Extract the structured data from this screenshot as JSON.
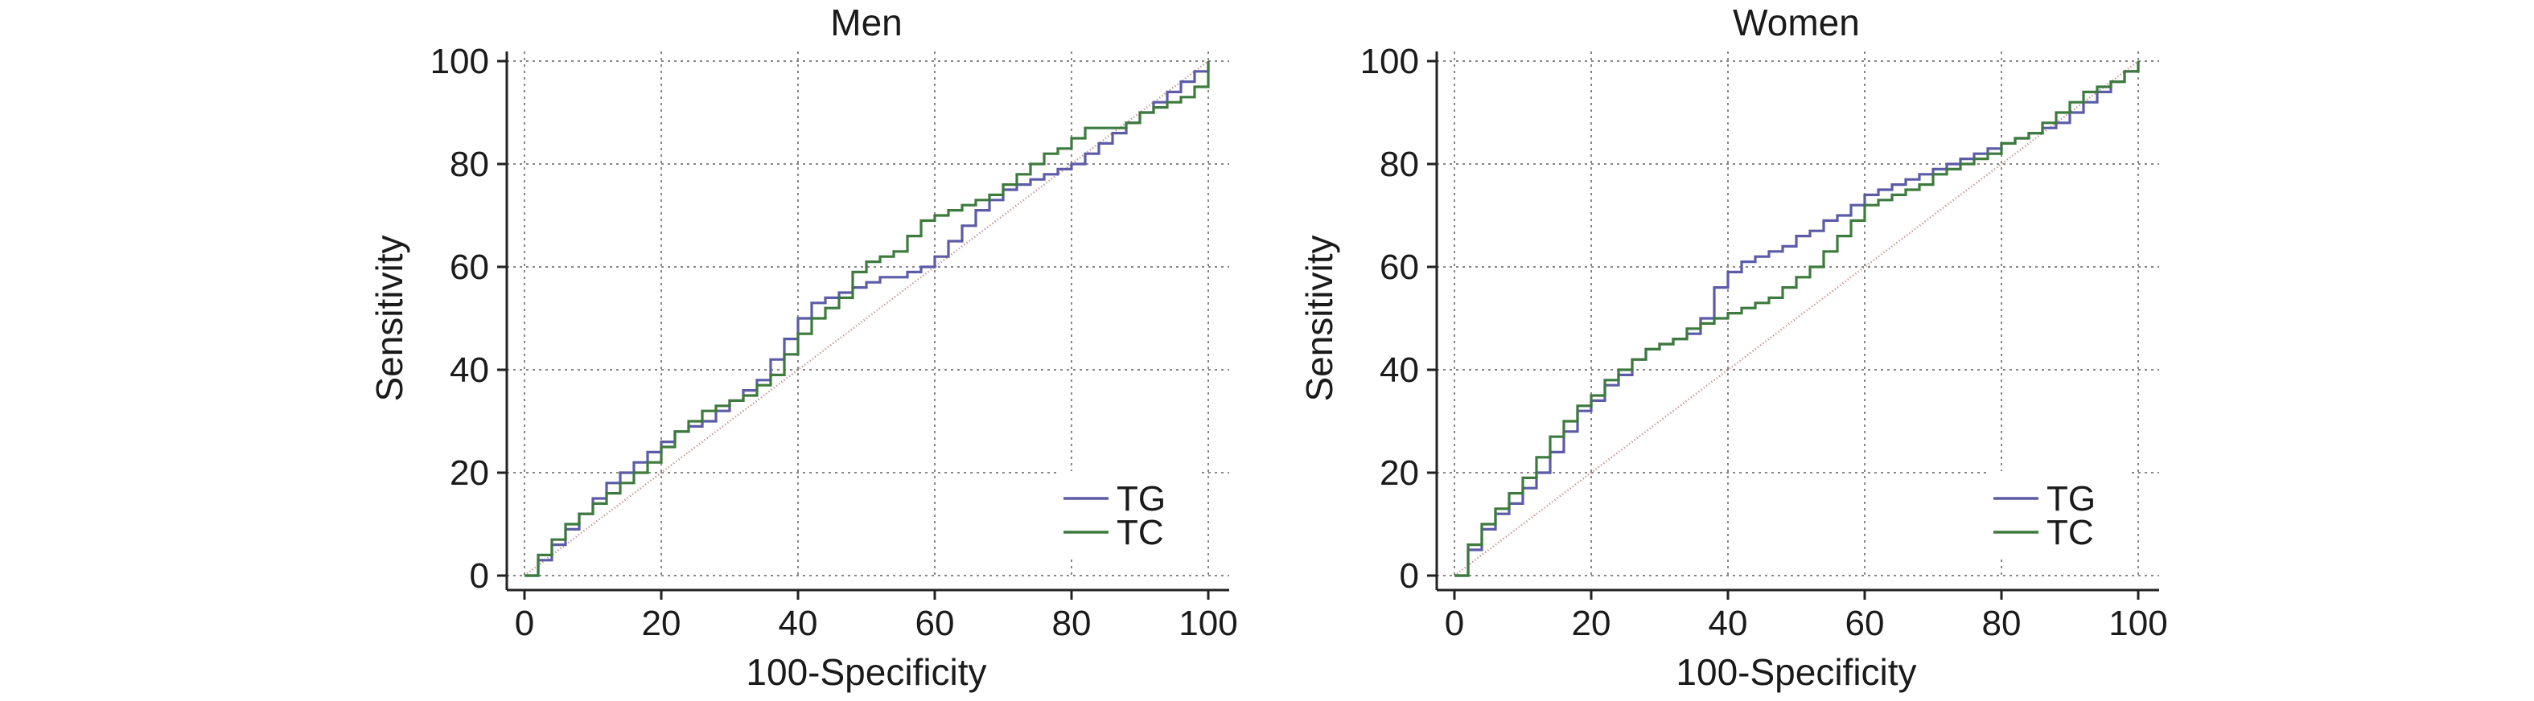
{
  "chart_data": [
    {
      "type": "line",
      "title": "Men",
      "xlabel": "100-Specificity",
      "ylabel": "Sensitivity",
      "xlim": [
        0,
        100
      ],
      "ylim": [
        0,
        100
      ],
      "xticks": [
        0,
        20,
        40,
        60,
        80,
        100
      ],
      "yticks": [
        0,
        20,
        40,
        60,
        80,
        100
      ],
      "grid": true,
      "legend_position": "bottom-right",
      "series": [
        {
          "name": "TG",
          "color": "#5b5ba8",
          "x": [
            0,
            2,
            4,
            6,
            8,
            10,
            12,
            14,
            16,
            18,
            20,
            22,
            24,
            26,
            28,
            30,
            32,
            34,
            36,
            38,
            40,
            42,
            44,
            46,
            48,
            50,
            52,
            54,
            56,
            58,
            60,
            62,
            64,
            66,
            68,
            70,
            72,
            74,
            76,
            78,
            80,
            82,
            84,
            86,
            88,
            90,
            92,
            94,
            96,
            98,
            100
          ],
          "y": [
            0,
            3,
            6,
            9,
            12,
            15,
            18,
            20,
            22,
            24,
            26,
            28,
            29,
            30,
            32,
            34,
            36,
            38,
            42,
            46,
            50,
            53,
            54,
            55,
            56,
            57,
            58,
            58,
            59,
            60,
            62,
            65,
            68,
            71,
            73,
            75,
            76,
            77,
            78,
            79,
            80,
            82,
            84,
            86,
            88,
            90,
            92,
            94,
            96,
            98,
            100
          ]
        },
        {
          "name": "TC",
          "color": "#3d7a3d",
          "x": [
            0,
            2,
            4,
            6,
            8,
            10,
            12,
            14,
            16,
            18,
            20,
            22,
            24,
            26,
            28,
            30,
            32,
            34,
            36,
            38,
            40,
            42,
            44,
            46,
            48,
            50,
            52,
            54,
            56,
            58,
            60,
            62,
            64,
            66,
            68,
            70,
            72,
            74,
            76,
            78,
            80,
            82,
            84,
            86,
            88,
            90,
            92,
            94,
            96,
            98,
            100
          ],
          "y": [
            0,
            4,
            7,
            10,
            12,
            14,
            16,
            18,
            20,
            22,
            25,
            28,
            30,
            32,
            33,
            34,
            35,
            37,
            39,
            43,
            47,
            50,
            52,
            54,
            59,
            61,
            62,
            63,
            66,
            69,
            70,
            71,
            72,
            73,
            74,
            76,
            78,
            80,
            82,
            83,
            85,
            87,
            87,
            87,
            88,
            90,
            91,
            92,
            93,
            95,
            100
          ]
        },
        {
          "name": "",
          "color": "#c07070",
          "x": [
            0,
            100
          ],
          "y": [
            0,
            100
          ]
        }
      ]
    },
    {
      "type": "line",
      "title": "Women",
      "xlabel": "100-Specificity",
      "ylabel": "Sensitivity",
      "xlim": [
        0,
        100
      ],
      "ylim": [
        0,
        100
      ],
      "xticks": [
        0,
        20,
        40,
        60,
        80,
        100
      ],
      "yticks": [
        0,
        20,
        40,
        60,
        80,
        100
      ],
      "grid": true,
      "legend_position": "bottom-right",
      "series": [
        {
          "name": "TG",
          "color": "#5b5ba8",
          "x": [
            0,
            2,
            4,
            6,
            8,
            10,
            12,
            14,
            16,
            18,
            20,
            22,
            24,
            26,
            28,
            30,
            32,
            34,
            36,
            38,
            40,
            42,
            44,
            46,
            48,
            50,
            52,
            54,
            56,
            58,
            60,
            62,
            64,
            66,
            68,
            70,
            72,
            74,
            76,
            78,
            80,
            82,
            84,
            86,
            88,
            90,
            92,
            94,
            96,
            98,
            100
          ],
          "y": [
            0,
            5,
            9,
            12,
            14,
            17,
            20,
            24,
            28,
            32,
            34,
            37,
            39,
            42,
            44,
            45,
            46,
            47,
            50,
            56,
            59,
            61,
            62,
            63,
            64,
            66,
            67,
            69,
            70,
            72,
            74,
            75,
            76,
            77,
            78,
            79,
            80,
            81,
            82,
            83,
            84,
            85,
            86,
            87,
            88,
            90,
            92,
            94,
            96,
            98,
            100
          ]
        },
        {
          "name": "TC",
          "color": "#3d7a3d",
          "x": [
            0,
            2,
            4,
            6,
            8,
            10,
            12,
            14,
            16,
            18,
            20,
            22,
            24,
            26,
            28,
            30,
            32,
            34,
            36,
            38,
            40,
            42,
            44,
            46,
            48,
            50,
            52,
            54,
            56,
            58,
            60,
            62,
            64,
            66,
            68,
            70,
            72,
            74,
            76,
            78,
            80,
            82,
            84,
            86,
            88,
            90,
            92,
            94,
            96,
            98,
            100
          ],
          "y": [
            0,
            6,
            10,
            13,
            16,
            19,
            23,
            27,
            30,
            33,
            35,
            38,
            40,
            42,
            44,
            45,
            46,
            48,
            49,
            50,
            51,
            52,
            53,
            54,
            56,
            58,
            60,
            63,
            66,
            69,
            72,
            73,
            74,
            75,
            76,
            78,
            79,
            80,
            81,
            82,
            84,
            85,
            86,
            88,
            90,
            92,
            94,
            95,
            96,
            98,
            100
          ]
        },
        {
          "name": "",
          "color": "#c07070",
          "x": [
            0,
            100
          ],
          "y": [
            0,
            100
          ]
        }
      ]
    }
  ]
}
